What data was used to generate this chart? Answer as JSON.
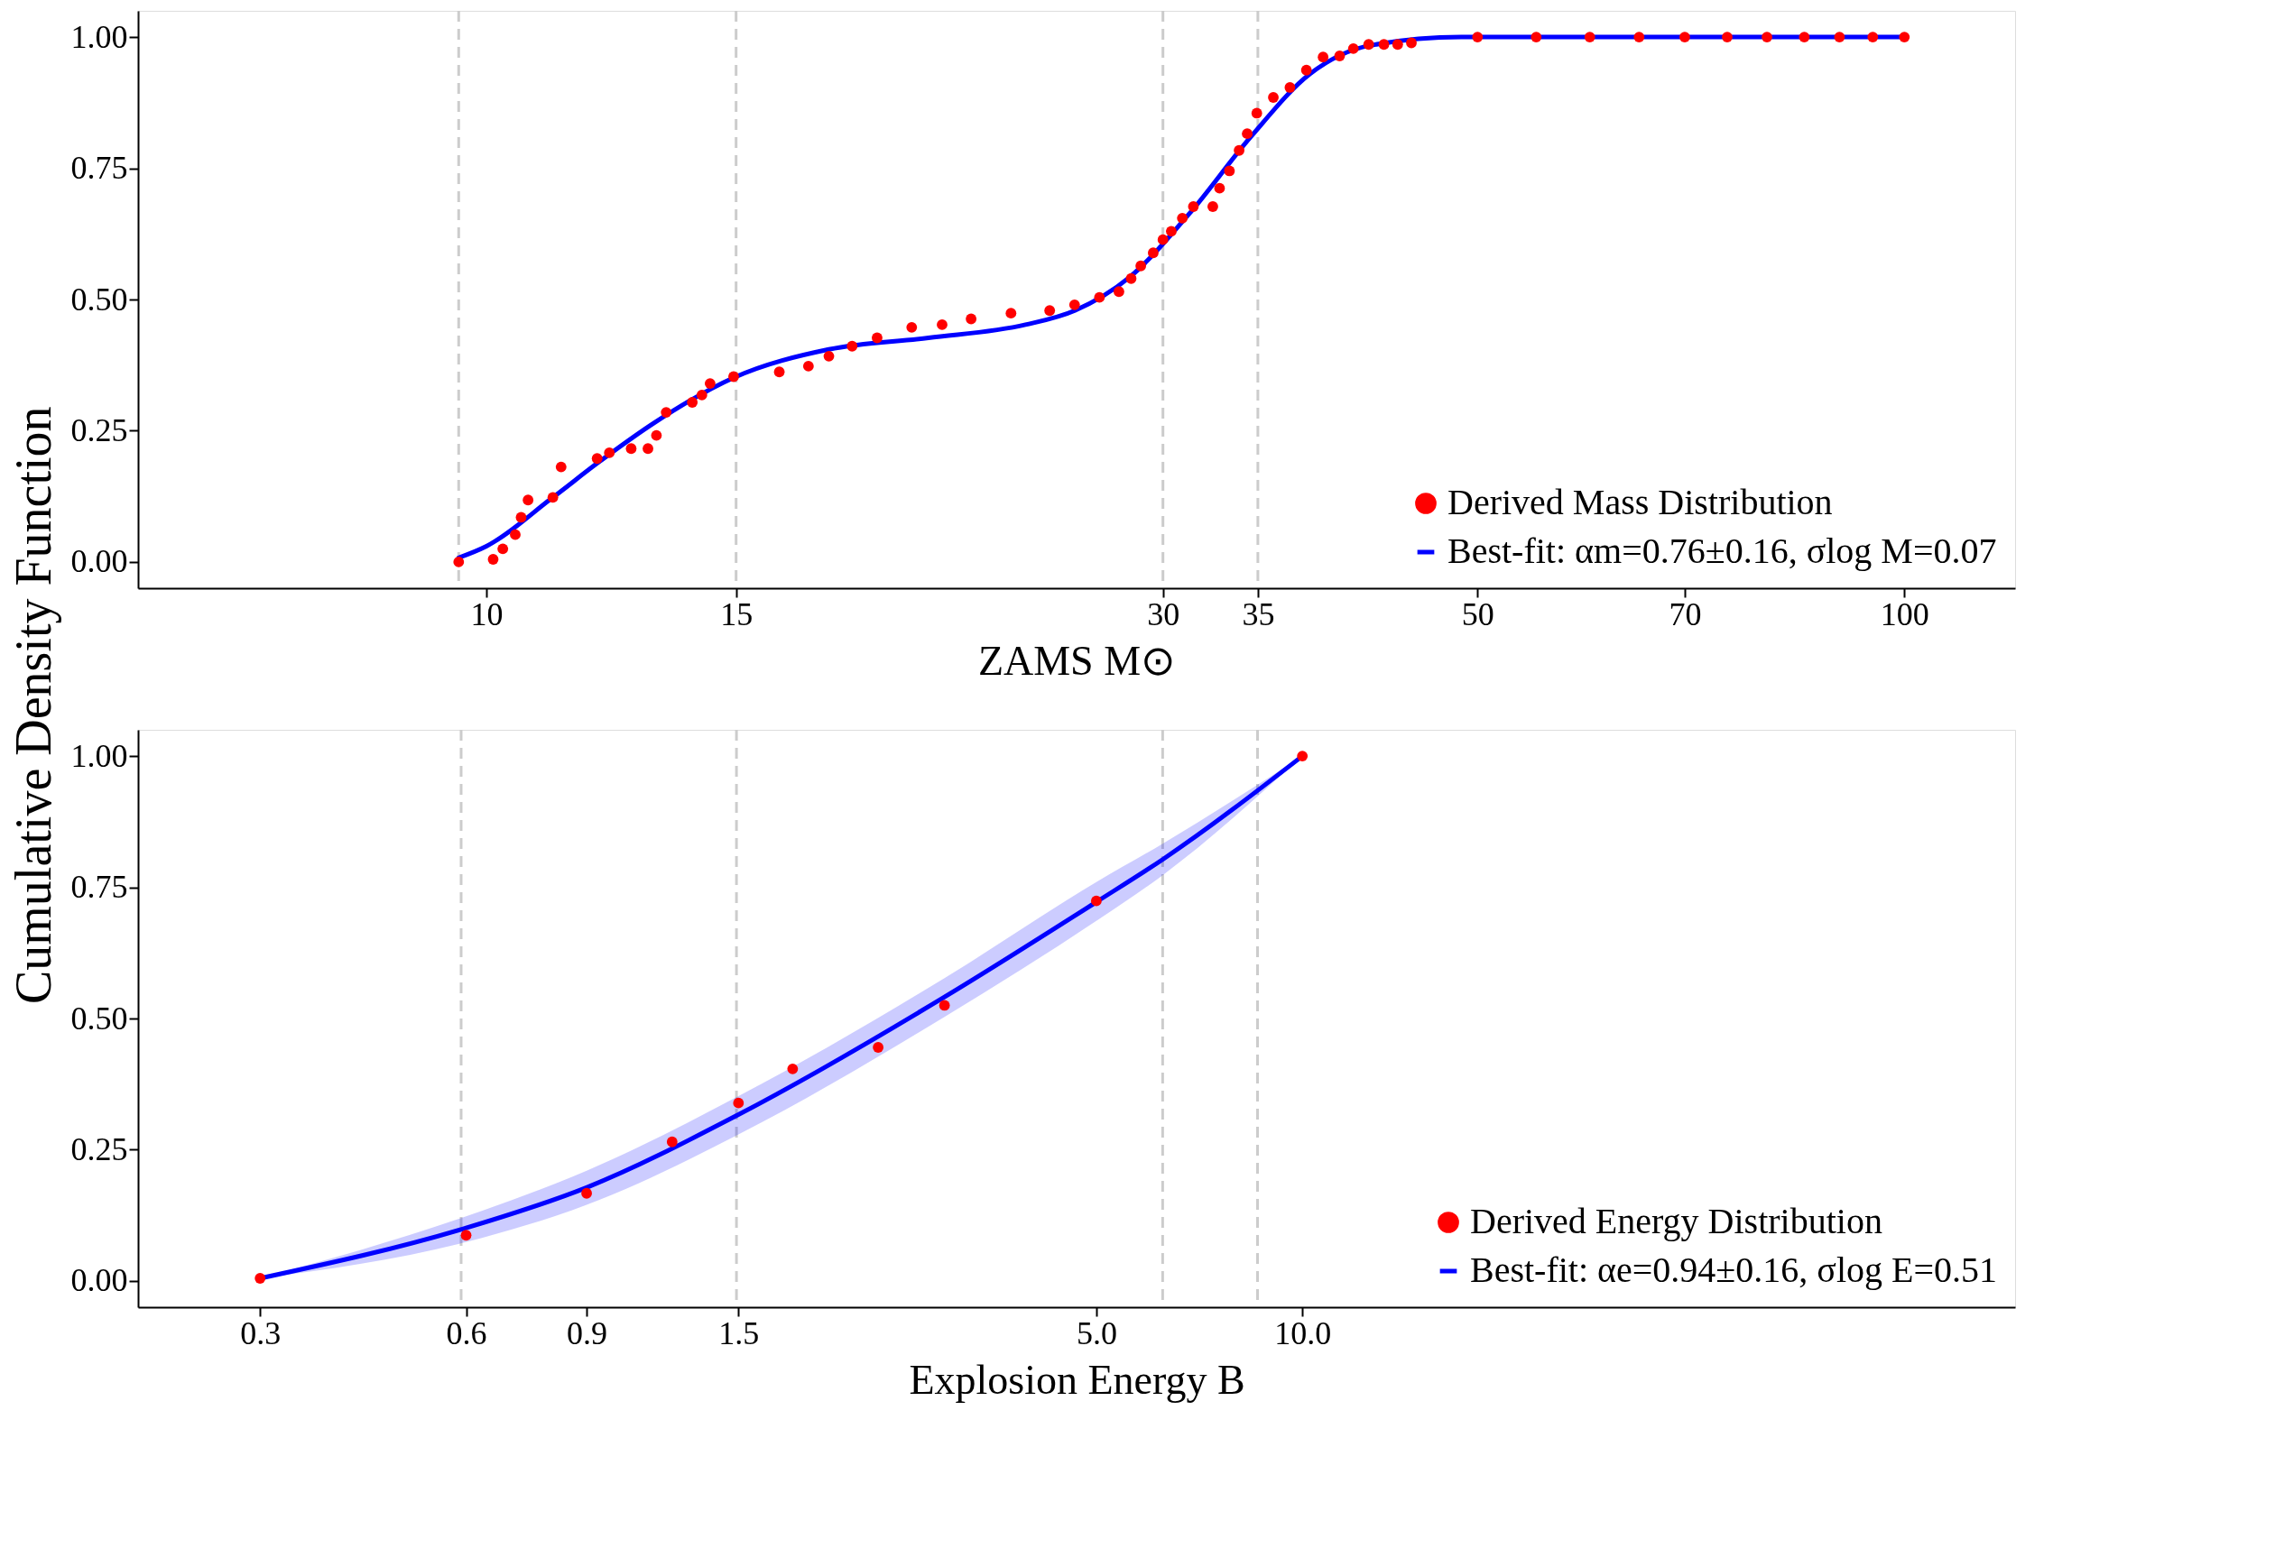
{
  "chart_data": [
    {
      "type": "line",
      "xlabel": "ZAMS M⊙",
      "ylabel": "Cumulative Density Function",
      "log": "x",
      "xlim": [
        5.68,
        119.7
      ],
      "xticks": [
        10,
        15,
        30,
        35,
        50,
        70,
        100
      ],
      "ylim": [
        -0.05,
        1.05
      ],
      "yticks": [
        {
          "value": 0,
          "label": "0.00"
        },
        {
          "value": 0.25,
          "label": "0.25"
        },
        {
          "value": 0.5,
          "label": "0.50"
        },
        {
          "value": 0.75,
          "label": "0.75"
        },
        {
          "value": 1,
          "label": "1.00"
        }
      ],
      "legend": "bottom right",
      "ref_lines": [
        {
          "axis": "x",
          "value": 9.56,
          "color": "#cccccc",
          "line_style": "dashed"
        },
        {
          "axis": "x",
          "value": 15,
          "color": "#cccccc",
          "line_style": "dashed"
        },
        {
          "axis": "x",
          "value": 30,
          "color": "#cccccc",
          "line_style": "dashed"
        },
        {
          "axis": "x",
          "value": 35,
          "color": "#cccccc",
          "line_style": "dashed"
        }
      ],
      "series": [
        {
          "name": "Derived Mass Distribution",
          "type": "scatter",
          "color": "#ff0000",
          "x": [
            9.56,
            10.11,
            10.27,
            10.48,
            10.58,
            10.7,
            11.14,
            11.29,
            11.97,
            12.21,
            12.65,
            13.0,
            13.18,
            13.39,
            13.97,
            14.19,
            14.38,
            14.94,
            16.09,
            16.87,
            17.44,
            18.11,
            18.86,
            19.95,
            20.96,
            21.97,
            23.44,
            24.96,
            25.99,
            27.06,
            27.93,
            28.49,
            28.94,
            29.53,
            30.0,
            30.41,
            30.96,
            31.52,
            32.53,
            32.89,
            33.42,
            33.95,
            34.4,
            34.94,
            35.89,
            36.87,
            37.87,
            38.91,
            39.97,
            40.87,
            41.9,
            42.95,
            43.92,
            44.91,
            50,
            55,
            60,
            65,
            70,
            75,
            80,
            85,
            90,
            95,
            100
          ],
          "values": [
            0.0,
            0.005,
            0.025,
            0.052,
            0.085,
            0.118,
            0.123,
            0.181,
            0.197,
            0.208,
            0.216,
            0.216,
            0.241,
            0.285,
            0.304,
            0.318,
            0.34,
            0.353,
            0.362,
            0.373,
            0.392,
            0.411,
            0.427,
            0.447,
            0.452,
            0.463,
            0.474,
            0.479,
            0.49,
            0.504,
            0.515,
            0.54,
            0.564,
            0.589,
            0.614,
            0.63,
            0.655,
            0.677,
            0.677,
            0.712,
            0.745,
            0.784,
            0.816,
            0.855,
            0.885,
            0.904,
            0.937,
            0.962,
            0.964,
            0.978,
            0.986,
            0.986,
            0.986,
            0.989,
            1.0,
            1.0,
            1.0,
            1.0,
            1.0,
            1.0,
            1.0,
            1.0,
            1.0,
            1.0,
            1.0
          ]
        },
        {
          "name": "Best-fit: αm=0.76±0.16, σlog M=0.07",
          "color": "#0000ff",
          "x": [
            9.56,
            10.0,
            11.14,
            12.0,
            13.15,
            14.94,
            17.44,
            20.5,
            24.0,
            26.0,
            28.4,
            31.3,
            34.6,
            38.1,
            42.0,
            48.7,
            60,
            100
          ],
          "values": [
            0.008,
            0.03,
            0.123,
            0.19,
            0.266,
            0.351,
            0.405,
            0.427,
            0.452,
            0.479,
            0.542,
            0.663,
            0.81,
            0.93,
            0.984,
            1.0,
            1.0,
            1.0
          ]
        }
      ]
    },
    {
      "type": "line",
      "xlabel": "Explosion Energy B",
      "log": "x",
      "xlim": [
        0.199,
        110
      ],
      "xticks": [
        0.3,
        0.6,
        0.9,
        1.5,
        {
          "value": 5,
          "label": "5.0"
        },
        {
          "value": 10,
          "label": "10.0"
        }
      ],
      "ylim": [
        -0.05,
        1.05
      ],
      "yticks": [
        {
          "value": 0,
          "label": "0.00"
        },
        {
          "value": 0.25,
          "label": "0.25"
        },
        {
          "value": 0.5,
          "label": "0.50"
        },
        {
          "value": 0.75,
          "label": "0.75"
        },
        {
          "value": 1,
          "label": "1.00"
        }
      ],
      "legend": "bottom right",
      "ref_lines": [
        {
          "axis": "x",
          "value": 0.59,
          "color": "#cccccc",
          "line_style": "dashed"
        },
        {
          "axis": "x",
          "value": 1.49,
          "color": "#cccccc",
          "line_style": "dashed"
        },
        {
          "axis": "x",
          "value": 6.25,
          "color": "#cccccc",
          "line_style": "dashed"
        },
        {
          "axis": "x",
          "value": 8.6,
          "color": "#cccccc",
          "line_style": "dashed"
        }
      ],
      "series": [
        {
          "name": "Derived Energy Distribution",
          "type": "scatter",
          "color": "#ff0000",
          "x": [
            0.3,
            0.6,
            0.9,
            1.2,
            1.5,
            1.8,
            2.4,
            3.0,
            5.0,
            10.0
          ],
          "values": [
            0.005,
            0.087,
            0.167,
            0.265,
            0.339,
            0.404,
            0.445,
            0.525,
            0.724,
            1.0
          ]
        },
        {
          "name": "Best-fit: αe=0.94±0.16, σlog E=0.51",
          "color": "#0000ff",
          "x": [
            0.3,
            0.6,
            0.9,
            1.5,
            3.0,
            5.0,
            6.25,
            10.0
          ],
          "values": [
            0.005,
            0.101,
            0.178,
            0.317,
            0.541,
            0.722,
            0.803,
            1.0
          ],
          "lower": [
            0.005,
            0.074,
            0.145,
            0.279,
            0.503,
            0.686,
            0.773,
            1.0
          ],
          "upper": [
            0.005,
            0.123,
            0.21,
            0.352,
            0.577,
            0.76,
            0.833,
            1.0
          ]
        }
      ]
    }
  ]
}
